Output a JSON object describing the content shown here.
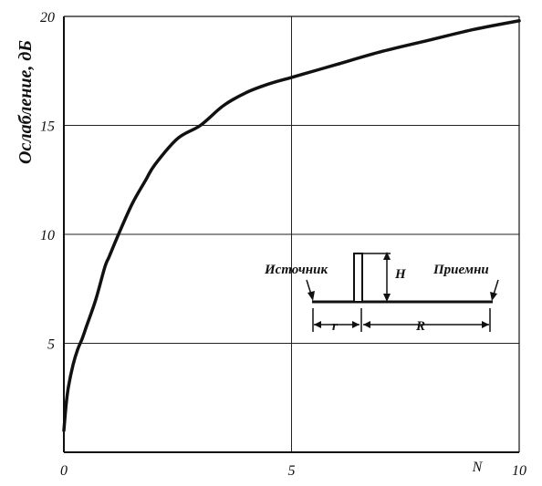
{
  "chart_data": {
    "type": "line",
    "title": "",
    "xlabel": "N",
    "ylabel": "Ослабление, дБ",
    "xlim": [
      0,
      10
    ],
    "ylim": [
      0,
      20
    ],
    "x_ticks": [
      "0",
      "5",
      "10"
    ],
    "y_ticks": [
      "5",
      "10",
      "15",
      "20"
    ],
    "grid": true,
    "series": [
      {
        "x": [
          0.0,
          0.05,
          0.1,
          0.2,
          0.3,
          0.4,
          0.5,
          0.7,
          0.9,
          1.0,
          1.2,
          1.5,
          1.8,
          2.0,
          2.5,
          3.0,
          3.5,
          4.0,
          4.5,
          5.0,
          5.5,
          6.0,
          7.0,
          8.0,
          9.0,
          10.0
        ],
        "y": [
          1.0,
          2.2,
          3.0,
          4.0,
          4.7,
          5.2,
          5.8,
          7.0,
          8.5,
          9.0,
          10.0,
          11.4,
          12.5,
          13.2,
          14.4,
          15.0,
          15.9,
          16.5,
          16.9,
          17.2,
          17.5,
          17.8,
          18.4,
          18.9,
          19.4,
          19.8
        ]
      }
    ],
    "inset_diagram": {
      "source_label": "Источник",
      "receiver_label": "Приемни",
      "height_label": "H",
      "r_label": "r",
      "R_label": "R"
    }
  }
}
